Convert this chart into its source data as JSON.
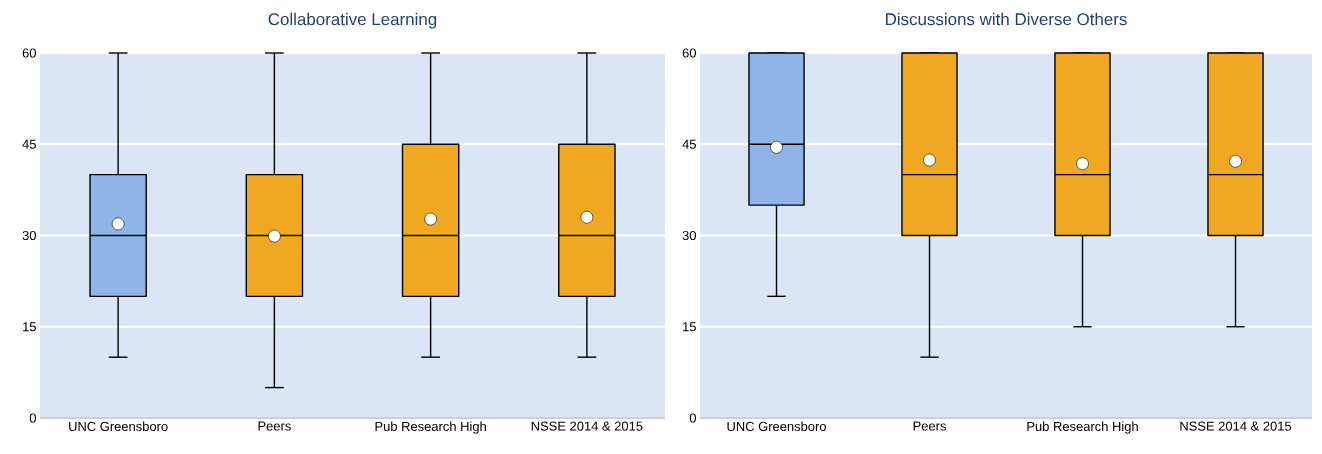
{
  "chart_data": [
    {
      "type": "box",
      "title": "Collaborative Learning",
      "categories": [
        "UNC Greensboro",
        "Peers",
        "Pub Research High",
        "NSSE 2014 & 2015"
      ],
      "boxes": [
        {
          "low": 10,
          "q1": 20,
          "median": 30,
          "q3": 40,
          "high": 60,
          "mean": 31.9
        },
        {
          "low": 5,
          "q1": 20,
          "median": 30,
          "q3": 40,
          "high": 60,
          "mean": 29.9
        },
        {
          "low": 10,
          "q1": 20,
          "median": 30,
          "q3": 45,
          "high": 60,
          "mean": 32.7
        },
        {
          "low": 10,
          "q1": 20,
          "median": 30,
          "q3": 45,
          "high": 60,
          "mean": 33.0
        }
      ],
      "colors": [
        "#8eb4e8",
        "#f0a823",
        "#f0a823",
        "#f0a823"
      ],
      "ylim": [
        0,
        60
      ],
      "yticks": [
        0,
        15,
        30,
        45,
        60
      ],
      "grid": "y"
    },
    {
      "type": "box",
      "title": "Discussions with Diverse Others",
      "categories": [
        "UNC Greensboro",
        "Peers",
        "Pub Research High",
        "NSSE 2014 & 2015"
      ],
      "boxes": [
        {
          "low": 20,
          "q1": 35,
          "median": 45,
          "q3": 60,
          "high": 60,
          "mean": 44.5
        },
        {
          "low": 10,
          "q1": 30,
          "median": 40,
          "q3": 60,
          "high": 60,
          "mean": 42.4
        },
        {
          "low": 15,
          "q1": 30,
          "median": 40,
          "q3": 60,
          "high": 60,
          "mean": 41.8
        },
        {
          "low": 15,
          "q1": 30,
          "median": 40,
          "q3": 60,
          "high": 60,
          "mean": 42.2
        }
      ],
      "colors": [
        "#8eb4e8",
        "#f0a823",
        "#f0a823",
        "#f0a823"
      ],
      "ylim": [
        0,
        60
      ],
      "yticks": [
        0,
        15,
        30,
        45,
        60
      ],
      "grid": "y"
    }
  ]
}
